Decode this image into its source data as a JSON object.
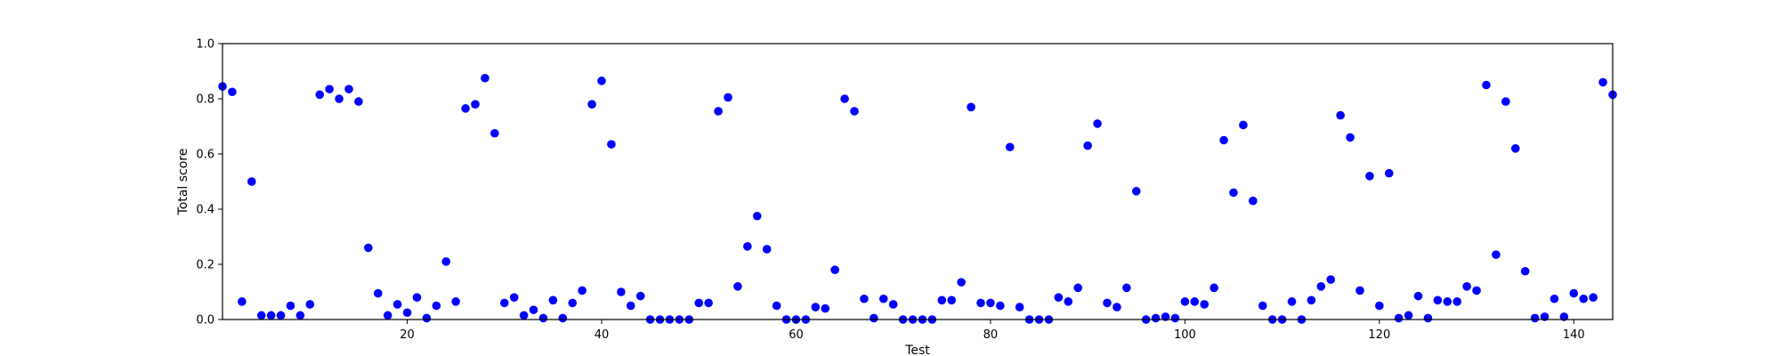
{
  "chart_data": {
    "type": "scatter",
    "xlabel": "Test",
    "ylabel": "Total score",
    "xlim": [
      1,
      144
    ],
    "ylim": [
      0,
      1.0
    ],
    "xticks": [
      20,
      40,
      60,
      80,
      100,
      120,
      140
    ],
    "yticks": [
      0.0,
      0.2,
      0.4,
      0.6,
      0.8,
      1.0
    ],
    "xtick_labels": [
      "20",
      "40",
      "60",
      "80",
      "100",
      "120",
      "140"
    ],
    "ytick_labels": [
      "0.0",
      "0.2",
      "0.4",
      "0.6",
      "0.8",
      "1.0"
    ],
    "grid": false,
    "marker_color": "#0000ff",
    "x": [
      1,
      2,
      3,
      4,
      5,
      6,
      7,
      8,
      9,
      10,
      11,
      12,
      13,
      14,
      15,
      16,
      17,
      18,
      19,
      20,
      21,
      22,
      23,
      24,
      25,
      26,
      27,
      28,
      29,
      30,
      31,
      32,
      33,
      34,
      35,
      36,
      37,
      38,
      39,
      40,
      41,
      42,
      43,
      44,
      45,
      46,
      47,
      48,
      49,
      50,
      51,
      52,
      53,
      54,
      55,
      56,
      57,
      58,
      59,
      60,
      61,
      62,
      63,
      64,
      65,
      66,
      67,
      68,
      69,
      70,
      71,
      72,
      73,
      74,
      75,
      76,
      77,
      78,
      79,
      80,
      81,
      82,
      83,
      84,
      85,
      86,
      87,
      88,
      89,
      90,
      91,
      92,
      93,
      94,
      95,
      96,
      97,
      98,
      99,
      100,
      101,
      102,
      103,
      104,
      105,
      106,
      107,
      108,
      109,
      110,
      111,
      112,
      113,
      114,
      115,
      116,
      117,
      118,
      119,
      120,
      121,
      122,
      123,
      124,
      125,
      126,
      127,
      128,
      129,
      130,
      131,
      132,
      133,
      134,
      135,
      136,
      137,
      138,
      139,
      140,
      141,
      142,
      143,
      144
    ],
    "y": [
      0.845,
      0.825,
      0.065,
      0.5,
      0.015,
      0.015,
      0.015,
      0.05,
      0.015,
      0.055,
      0.815,
      0.835,
      0.8,
      0.835,
      0.79,
      0.26,
      0.095,
      0.015,
      0.055,
      0.025,
      0.08,
      0.005,
      0.05,
      0.21,
      0.065,
      0.765,
      0.78,
      0.875,
      0.675,
      0.06,
      0.08,
      0.015,
      0.035,
      0.005,
      0.07,
      0.005,
      0.06,
      0.105,
      0.78,
      0.865,
      0.635,
      0.1,
      0.05,
      0.085,
      0.0,
      0.0,
      0.0,
      0.0,
      0.0,
      0.06,
      0.06,
      0.755,
      0.805,
      0.12,
      0.265,
      0.375,
      0.255,
      0.05,
      0.0,
      0.0,
      0.0,
      0.045,
      0.04,
      0.18,
      0.8,
      0.755,
      0.075,
      0.005,
      0.075,
      0.055,
      0.0,
      0.0,
      0.0,
      0.0,
      0.07,
      0.07,
      0.135,
      0.77,
      0.06,
      0.06,
      0.05,
      0.625,
      0.045,
      0.0,
      0.0,
      0.0,
      0.08,
      0.065,
      0.115,
      0.63,
      0.71,
      0.06,
      0.045,
      0.115,
      0.465,
      0.0,
      0.005,
      0.01,
      0.005,
      0.065,
      0.065,
      0.055,
      0.115,
      0.65,
      0.46,
      0.705,
      0.43,
      0.05,
      0.0,
      0.0,
      0.065,
      0.0,
      0.07,
      0.12,
      0.145,
      0.74,
      0.66,
      0.105,
      0.52,
      0.05,
      0.53,
      0.005,
      0.015,
      0.085,
      0.005,
      0.07,
      0.065,
      0.065,
      0.12,
      0.105,
      0.85,
      0.235,
      0.79,
      0.62,
      0.175,
      0.005,
      0.01,
      0.075,
      0.01,
      0.095,
      0.075,
      0.08,
      0.86,
      0.815
    ]
  }
}
